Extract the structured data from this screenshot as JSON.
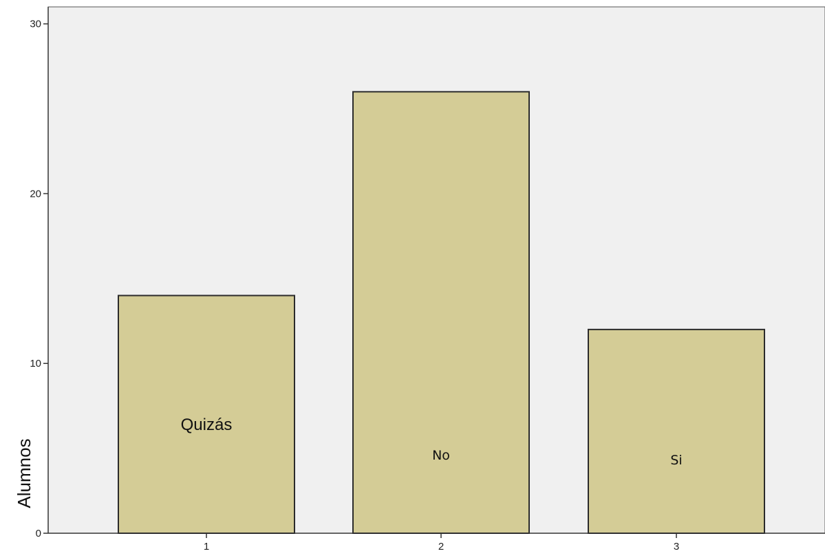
{
  "chart_data": {
    "type": "bar",
    "x": [
      1,
      2,
      3
    ],
    "x_tick_labels": [
      "1",
      "2",
      "3"
    ],
    "category_labels": [
      "Quizás",
      "No",
      "Si"
    ],
    "values": [
      14,
      26,
      12
    ],
    "ylabel": "Alumnos",
    "xlabel": "",
    "ylim": [
      0,
      31
    ],
    "y_ticks": [
      0,
      10,
      20,
      30
    ],
    "y_tick_labels": [
      "0",
      "10",
      "20",
      "30"
    ],
    "grid": false,
    "colors": {
      "bar_fill": "#d4cc96",
      "bar_stroke": "#2b2b2b",
      "plot_background": "#f0f0f0",
      "axis": "#333333"
    }
  }
}
